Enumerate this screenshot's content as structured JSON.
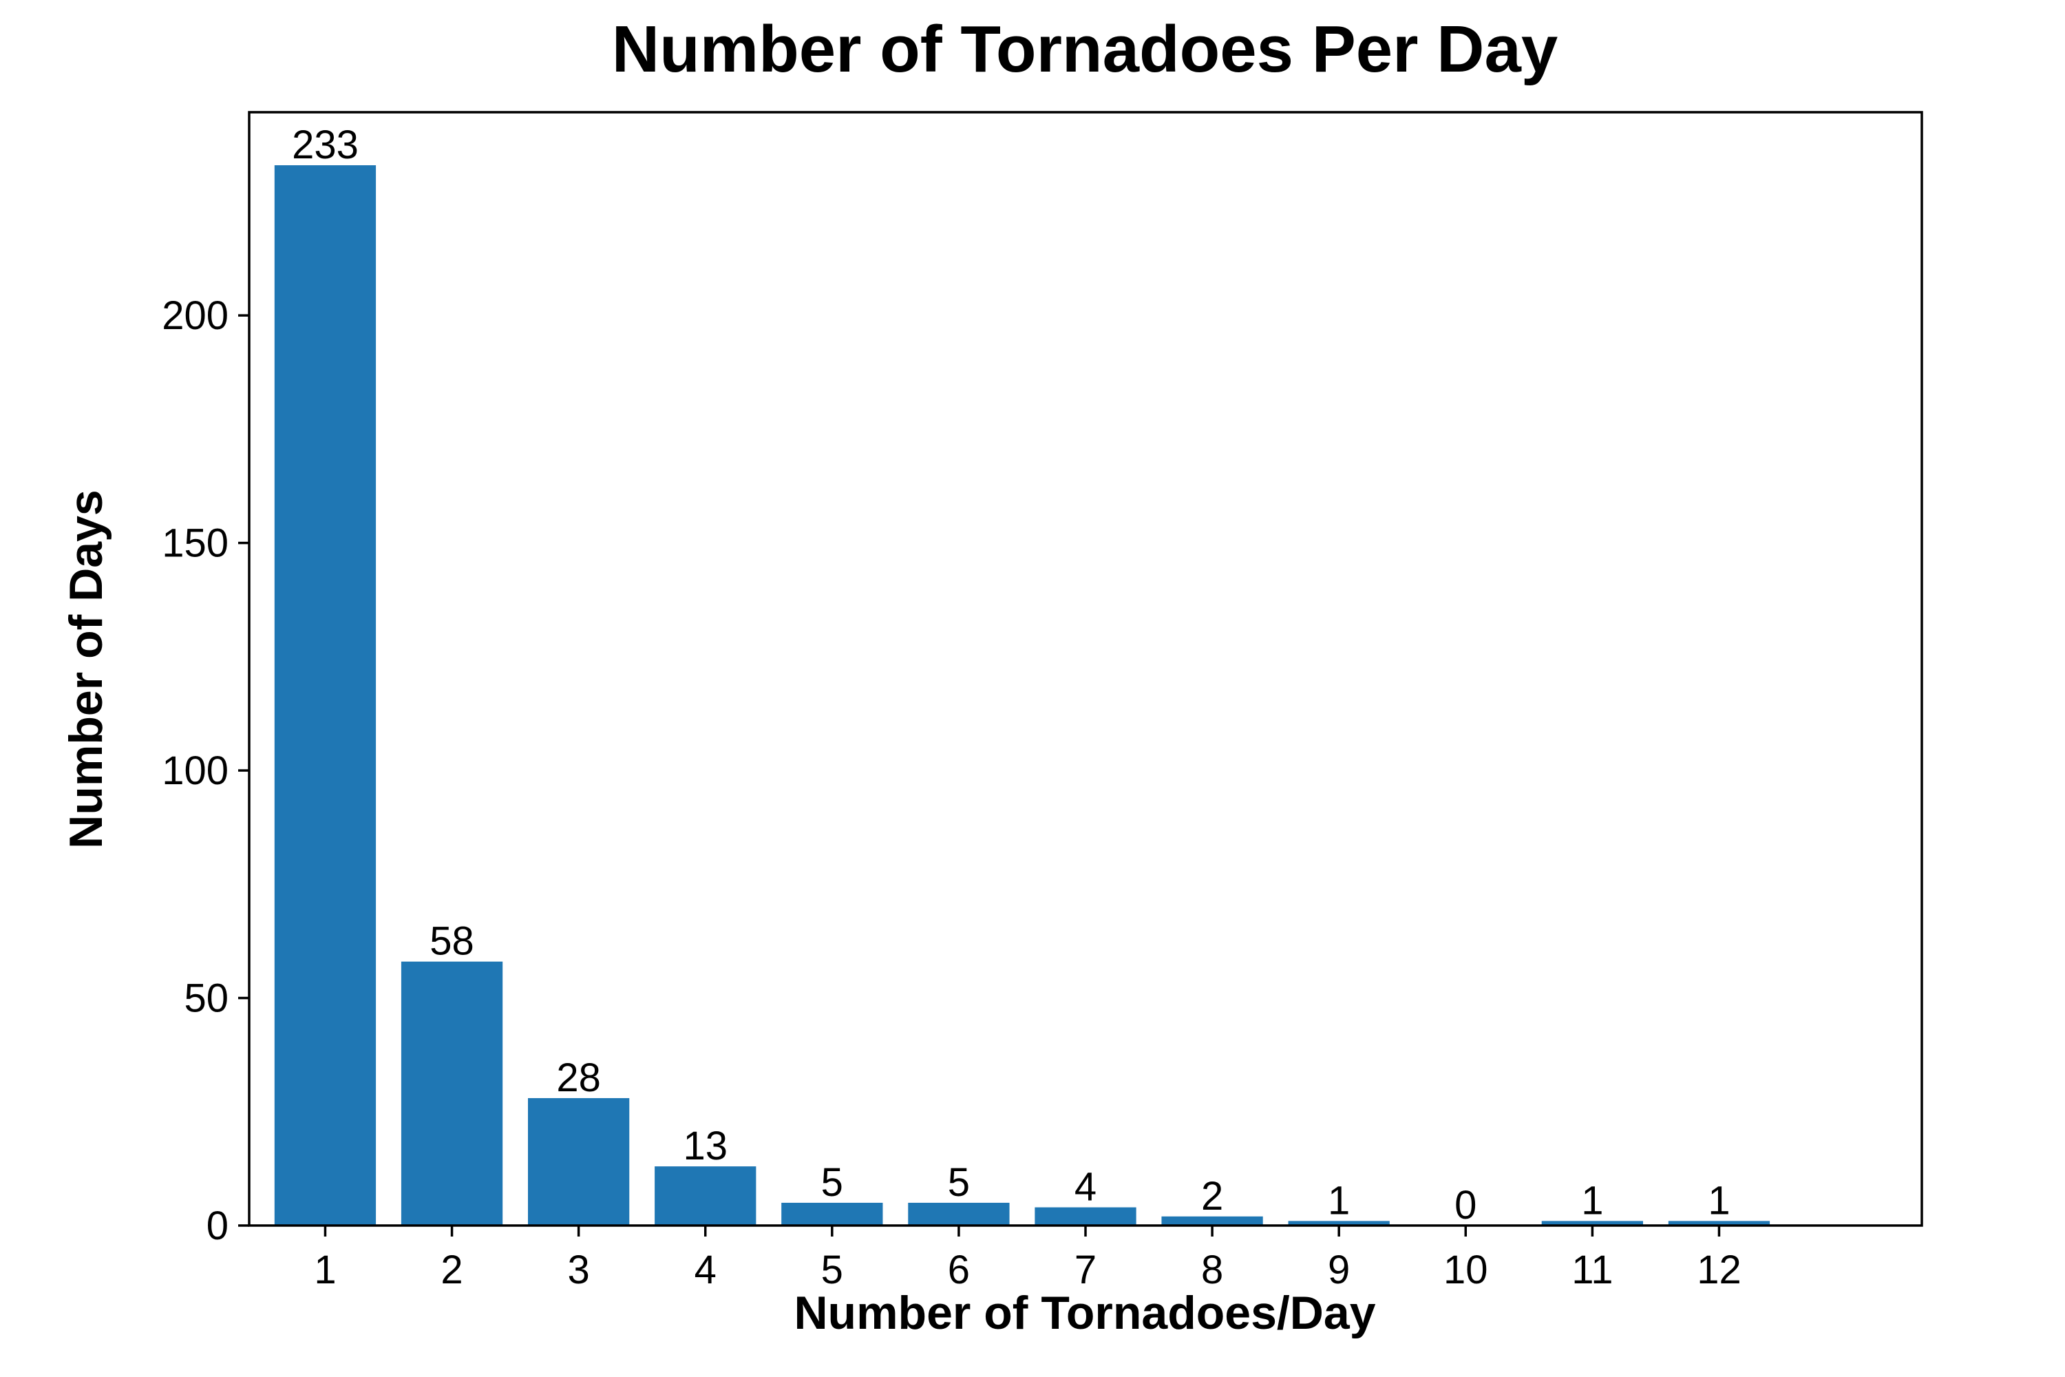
{
  "chart_data": {
    "type": "bar",
    "title": "Number of Tornadoes Per Day",
    "xlabel": "Number of Tornadoes/Day",
    "ylabel": "Number of Days",
    "categories": [
      "1",
      "2",
      "3",
      "4",
      "5",
      "6",
      "7",
      "8",
      "9",
      "10",
      "11",
      "12"
    ],
    "values": [
      233,
      58,
      28,
      13,
      5,
      5,
      4,
      2,
      1,
      0,
      1,
      1
    ],
    "data_labels": [
      "233",
      "58",
      "28",
      "13",
      "5",
      "5",
      "4",
      "2",
      "1",
      "0",
      "1",
      "1"
    ],
    "yticks": [
      0,
      50,
      100,
      150,
      200
    ],
    "ylim": [
      0,
      244.65
    ],
    "xlim": [
      0.4,
      13.6
    ],
    "grid": false,
    "bar_color": "#1f77b4"
  }
}
